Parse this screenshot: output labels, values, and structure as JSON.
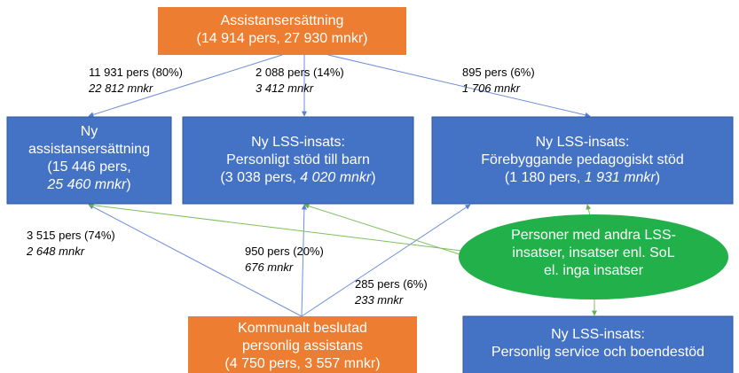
{
  "nodes": [
    {
      "lines": [
        [
          {
            "text": "Assistansersättning"
          }
        ],
        [
          {
            "text": "(14 914 pers, 27 930 mnkr)"
          }
        ]
      ]
    },
    {
      "lines": [
        [
          {
            "text": "Ny"
          }
        ],
        [
          {
            "text": "assistansersättning"
          }
        ],
        [
          {
            "text": "(15 446 pers,"
          }
        ],
        [
          {
            "text": "25 460 mnkr",
            "italic": true
          },
          {
            "text": ")"
          }
        ]
      ]
    },
    {
      "lines": [
        [
          {
            "text": "Ny LSS-insats:"
          }
        ],
        [
          {
            "text": "Personligt stöd till barn"
          }
        ],
        [
          {
            "text": "(3 038 pers, "
          },
          {
            "text": "4 020 mnkr",
            "italic": true
          },
          {
            "text": ")"
          }
        ]
      ]
    },
    {
      "lines": [
        [
          {
            "text": "Ny LSS-insats:"
          }
        ],
        [
          {
            "text": "Förebyggande pedagogiskt stöd"
          }
        ],
        [
          {
            "text": "(1 180 pers, "
          },
          {
            "text": "1 931 mnkr",
            "italic": true
          },
          {
            "text": ")"
          }
        ]
      ]
    },
    {
      "lines": [
        [
          {
            "text": "Personer med andra LSS-"
          }
        ],
        [
          {
            "text": "insatser, insatser enl. SoL"
          }
        ],
        [
          {
            "text": "el. inga insatser"
          }
        ]
      ]
    },
    {
      "lines": [
        [
          {
            "text": "Kommunalt beslutad"
          }
        ],
        [
          {
            "text": "personlig assistans"
          }
        ],
        [
          {
            "text": "(4 750 pers, 3 557 mnkr)"
          }
        ]
      ]
    },
    {
      "lines": [
        [
          {
            "text": "Ny LSS-insats:"
          }
        ],
        [
          {
            "text": "Personlig service och boendestöd"
          }
        ]
      ]
    }
  ],
  "edge_labels": [
    {
      "persons": "11 931 pers (80%)",
      "mnkr": "22 812 mnkr"
    },
    {
      "persons": "2 088 pers (14%)",
      "mnkr": "3 412 mnkr"
    },
    {
      "persons": "895 pers (6%)",
      "mnkr": "1 706 mnkr"
    },
    {
      "persons": "3 515 pers (74%)",
      "mnkr": "2 648 mnkr"
    },
    {
      "persons": "950 pers (20%)",
      "mnkr": "676 mnkr"
    },
    {
      "persons": "285 pers (6%)",
      "mnkr": "233 mnkr"
    }
  ]
}
